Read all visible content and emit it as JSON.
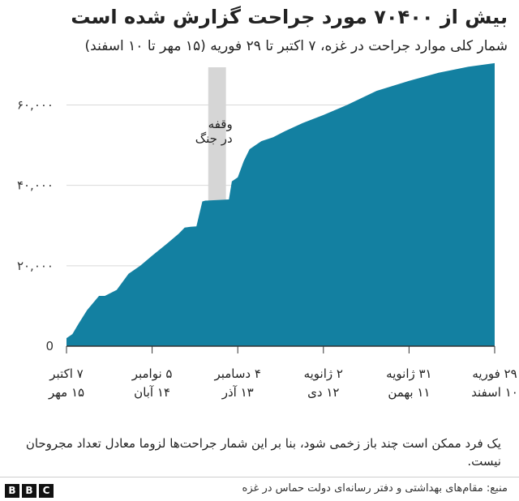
{
  "header": {
    "title": "بیش از ۷۰۴۰۰ مورد جراحت گزارش شده است",
    "subtitle": "شمار کلی موارد جراحت در غزه، ۷ اکتبر تا ۲۹ فوریه (۱۵ مهر تا ۱۰ اسفند)"
  },
  "chart_data": {
    "type": "area",
    "x_unit": "date",
    "x_start": "2023-10-07",
    "x_end": "2024-02-29",
    "ylim": [
      0,
      72000
    ],
    "y_ticks": [
      {
        "value": 0,
        "label": "0"
      },
      {
        "value": 20000,
        "label": "۲۰,۰۰۰"
      },
      {
        "value": 40000,
        "label": "۴۰,۰۰۰"
      },
      {
        "value": 60000,
        "label": "۶۰,۰۰۰"
      }
    ],
    "x_ticks": [
      {
        "date": "2023-10-07",
        "line1": "۷ اکتبر",
        "line2": "۱۵ مهر"
      },
      {
        "date": "2023-11-05",
        "line1": "۵ نوامبر",
        "line2": "۱۴ آبان"
      },
      {
        "date": "2023-12-04",
        "line1": "۴ دسامبر",
        "line2": "۱۳ آذر"
      },
      {
        "date": "2024-01-02",
        "line1": "۲ ژانویه",
        "line2": "۱۲ دی"
      },
      {
        "date": "2024-01-31",
        "line1": "۳۱ ژانویه",
        "line2": "۱۱ بهمن"
      },
      {
        "date": "2024-02-29",
        "line1": "۲۹ فوریه",
        "line2": "۱۰ اسفند"
      }
    ],
    "series": [
      {
        "color": "#1380a1",
        "points": [
          {
            "x": "2023-10-07",
            "y": 2000
          },
          {
            "x": "2023-10-09",
            "y": 3000
          },
          {
            "x": "2023-10-11",
            "y": 5500
          },
          {
            "x": "2023-10-14",
            "y": 9000
          },
          {
            "x": "2023-10-18",
            "y": 12500
          },
          {
            "x": "2023-10-20",
            "y": 12500
          },
          {
            "x": "2023-10-24",
            "y": 14000
          },
          {
            "x": "2023-10-28",
            "y": 18000
          },
          {
            "x": "2023-11-01",
            "y": 20000
          },
          {
            "x": "2023-11-05",
            "y": 22500
          },
          {
            "x": "2023-11-10",
            "y": 25500
          },
          {
            "x": "2023-11-14",
            "y": 28000
          },
          {
            "x": "2023-11-16",
            "y": 29500
          },
          {
            "x": "2023-11-18",
            "y": 29700
          },
          {
            "x": "2023-11-20",
            "y": 29800
          },
          {
            "x": "2023-11-22",
            "y": 36000
          },
          {
            "x": "2023-11-23",
            "y": 36200
          },
          {
            "x": "2023-12-01",
            "y": 36500
          },
          {
            "x": "2023-12-02",
            "y": 41000
          },
          {
            "x": "2023-12-04",
            "y": 42000
          },
          {
            "x": "2023-12-06",
            "y": 46000
          },
          {
            "x": "2023-12-08",
            "y": 49000
          },
          {
            "x": "2023-12-12",
            "y": 51000
          },
          {
            "x": "2023-12-16",
            "y": 52000
          },
          {
            "x": "2023-12-20",
            "y": 53500
          },
          {
            "x": "2023-12-26",
            "y": 55500
          },
          {
            "x": "2024-01-02",
            "y": 57500
          },
          {
            "x": "2024-01-10",
            "y": 60000
          },
          {
            "x": "2024-01-20",
            "y": 63500
          },
          {
            "x": "2024-01-31",
            "y": 66000
          },
          {
            "x": "2024-02-10",
            "y": 68000
          },
          {
            "x": "2024-02-20",
            "y": 69500
          },
          {
            "x": "2024-02-29",
            "y": 70400
          }
        ]
      }
    ],
    "pause_band": {
      "start": "2023-11-24",
      "end": "2023-11-30",
      "label_line1": "وقفه",
      "label_line2": "در جنگ"
    }
  },
  "footer": {
    "note": "یک فرد ممکن است چند باز زخمی شود، بنا بر این شمار جراحت‌ها لزوما معادل تعداد مجروحان نیست.",
    "source": "منبع: مقام‌های بهداشتی و  دفتر رسانه‌ای دولت حماس در غزه",
    "logo_letters": [
      "B",
      "B",
      "C"
    ]
  }
}
